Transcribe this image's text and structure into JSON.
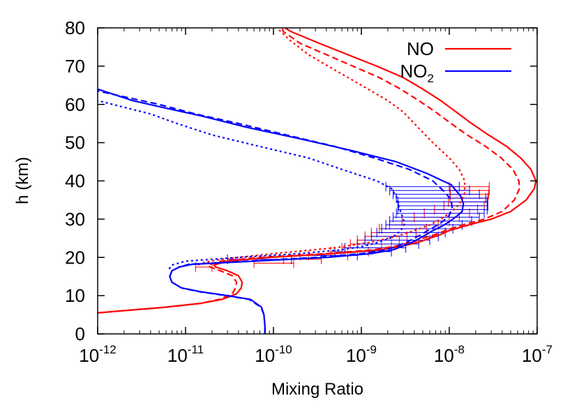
{
  "chart_data": {
    "type": "line",
    "xlabel": "Mixing Ratio",
    "ylabel": "h (km)",
    "xscale": "log",
    "xlim": [
      1e-12,
      1e-07
    ],
    "ylim": [
      0,
      80
    ],
    "x_ticks": [
      {
        "base": "10",
        "exp": "-12",
        "value": 1e-12
      },
      {
        "base": "10",
        "exp": "-11",
        "value": 1e-11
      },
      {
        "base": "10",
        "exp": "-10",
        "value": 1e-10
      },
      {
        "base": "10",
        "exp": "-9",
        "value": 1e-09
      },
      {
        "base": "10",
        "exp": "-8",
        "value": 1e-08
      },
      {
        "base": "10",
        "exp": "-7",
        "value": 1e-07
      }
    ],
    "y_ticks": [
      "0",
      "10",
      "20",
      "30",
      "40",
      "50",
      "60",
      "70",
      "80"
    ],
    "legend": {
      "position": "top-right",
      "entries": [
        {
          "label": "NO",
          "sub": "",
          "color": "#ff0000"
        },
        {
          "label": "NO",
          "sub": "2",
          "color": "#0000ff"
        }
      ]
    },
    "series": [
      {
        "name": "NO",
        "style": "solid",
        "color": "#ff0000",
        "points": [
          [
            1e-12,
            5.5
          ],
          [
            6e-12,
            7
          ],
          [
            1.5e-11,
            8
          ],
          [
            2.6e-11,
            9
          ],
          [
            3.8e-11,
            10.5
          ],
          [
            4.3e-11,
            12
          ],
          [
            4.4e-11,
            13.5
          ],
          [
            4e-11,
            15.2
          ],
          [
            3e-11,
            16.5
          ],
          [
            2.2e-11,
            17.5
          ],
          [
            2.1e-11,
            18
          ],
          [
            3e-11,
            19
          ],
          [
            9e-11,
            20
          ],
          [
            5e-10,
            21
          ],
          [
            1.7e-09,
            22
          ],
          [
            3e-09,
            23
          ],
          [
            4.5e-09,
            24
          ],
          [
            6e-09,
            25
          ],
          [
            8e-09,
            26
          ],
          [
            1e-08,
            27
          ],
          [
            1.4e-08,
            28
          ],
          [
            2e-08,
            29
          ],
          [
            3e-08,
            30
          ],
          [
            5e-08,
            32
          ],
          [
            7.5e-08,
            35
          ],
          [
            9.3e-08,
            38
          ],
          [
            9.7e-08,
            40
          ],
          [
            8.5e-08,
            43
          ],
          [
            6.5e-08,
            46
          ],
          [
            4.5e-08,
            49
          ],
          [
            2.8e-08,
            52
          ],
          [
            1.8e-08,
            55
          ],
          [
            1.2e-08,
            58
          ],
          [
            8e-09,
            61
          ],
          [
            5e-09,
            64
          ],
          [
            3e-09,
            67
          ],
          [
            1.5e-09,
            70
          ],
          [
            7e-10,
            73
          ],
          [
            3.3e-10,
            76
          ],
          [
            1.6e-10,
            79
          ],
          [
            1.35e-10,
            80
          ]
        ]
      },
      {
        "name": "NO dashed",
        "style": "dashed",
        "color": "#ff0000",
        "points": [
          [
            1e-12,
            5.5
          ],
          [
            6e-12,
            7
          ],
          [
            1.5e-11,
            8
          ],
          [
            2.4e-11,
            9
          ],
          [
            3.4e-11,
            10.5
          ],
          [
            3.7e-11,
            12
          ],
          [
            3.8e-11,
            13.5
          ],
          [
            3.4e-11,
            15.2
          ],
          [
            2.5e-11,
            16.5
          ],
          [
            1.9e-11,
            17.5
          ],
          [
            1.8e-11,
            18
          ],
          [
            2.5e-11,
            19
          ],
          [
            7e-11,
            20
          ],
          [
            4e-10,
            21
          ],
          [
            1.4e-09,
            22
          ],
          [
            2.5e-09,
            23
          ],
          [
            3.8e-09,
            24
          ],
          [
            5e-09,
            25
          ],
          [
            7e-09,
            26
          ],
          [
            9e-09,
            27
          ],
          [
            1.2e-08,
            28
          ],
          [
            1.7e-08,
            29
          ],
          [
            2.5e-08,
            30
          ],
          [
            4e-08,
            32
          ],
          [
            5.5e-08,
            35
          ],
          [
            6.3e-08,
            38
          ],
          [
            6.2e-08,
            40
          ],
          [
            5.3e-08,
            43
          ],
          [
            3.9e-08,
            46
          ],
          [
            2.6e-08,
            49
          ],
          [
            1.6e-08,
            52
          ],
          [
            1.05e-08,
            55
          ],
          [
            7e-09,
            58
          ],
          [
            4.5e-09,
            61
          ],
          [
            2.8e-09,
            64
          ],
          [
            1.6e-09,
            67
          ],
          [
            8e-10,
            70
          ],
          [
            4e-10,
            73
          ],
          [
            2e-10,
            76
          ],
          [
            1.3e-10,
            79
          ],
          [
            1.25e-10,
            80
          ]
        ]
      },
      {
        "name": "NO dotted",
        "style": "dotted",
        "color": "#ff0000",
        "points": [
          [
            1.4e-11,
            18
          ],
          [
            1.5e-11,
            18.5
          ],
          [
            2.5e-11,
            19.5
          ],
          [
            1e-10,
            21
          ],
          [
            5e-10,
            22.5
          ],
          [
            1.3e-09,
            24
          ],
          [
            2.5e-09,
            25.5
          ],
          [
            4e-09,
            27
          ],
          [
            6e-09,
            28.5
          ],
          [
            8e-09,
            30
          ],
          [
            1e-08,
            31.5
          ],
          [
            1.2e-08,
            33
          ],
          [
            1.4e-08,
            35
          ],
          [
            1.5e-08,
            37
          ],
          [
            1.5e-08,
            40
          ],
          [
            1.3e-08,
            43
          ],
          [
            1e-08,
            46
          ],
          [
            6.5e-09,
            50
          ],
          [
            4e-09,
            55
          ],
          [
            3e-09,
            58
          ],
          [
            2e-09,
            61
          ],
          [
            1e-09,
            65
          ],
          [
            5e-10,
            69
          ],
          [
            2.5e-10,
            73
          ],
          [
            1.5e-10,
            77
          ],
          [
            1.1e-10,
            80
          ]
        ]
      },
      {
        "name": "NO2",
        "style": "solid",
        "color": "#0000ff",
        "points": [
          [
            8e-11,
            0
          ],
          [
            8e-11,
            2
          ],
          [
            7.8e-11,
            5
          ],
          [
            7.3e-11,
            7
          ],
          [
            5.5e-11,
            9
          ],
          [
            3e-11,
            10
          ],
          [
            1.5e-11,
            11
          ],
          [
            9e-12,
            12
          ],
          [
            7e-12,
            13.5
          ],
          [
            6.6e-12,
            15
          ],
          [
            7e-12,
            16.5
          ],
          [
            8.5e-12,
            17.5
          ],
          [
            1.2e-11,
            18.2
          ],
          [
            6e-11,
            19
          ],
          [
            4e-10,
            20
          ],
          [
            1.3e-09,
            21
          ],
          [
            2.3e-09,
            22
          ],
          [
            3e-09,
            23
          ],
          [
            3.8e-09,
            24
          ],
          [
            4.6e-09,
            25
          ],
          [
            5.5e-09,
            26
          ],
          [
            6.5e-09,
            27
          ],
          [
            8e-09,
            28
          ],
          [
            9.5e-09,
            29
          ],
          [
            1.1e-08,
            30
          ],
          [
            1.25e-08,
            31
          ],
          [
            1.4e-08,
            32
          ],
          [
            1.45e-08,
            34
          ],
          [
            1.35e-08,
            36
          ],
          [
            1.05e-08,
            39
          ],
          [
            5.5e-09,
            42
          ],
          [
            2.5e-09,
            45
          ],
          [
            7.5e-10,
            48
          ],
          [
            2e-10,
            51
          ],
          [
            5e-11,
            54
          ],
          [
            1.5e-11,
            57
          ],
          [
            6e-12,
            59
          ],
          [
            2.5e-12,
            61
          ],
          [
            1e-12,
            64
          ]
        ]
      },
      {
        "name": "NO2 dashed",
        "style": "dashed",
        "color": "#0000ff",
        "points": [
          [
            8e-11,
            0
          ],
          [
            8e-11,
            2
          ],
          [
            7.8e-11,
            5
          ],
          [
            7.2e-11,
            7
          ],
          [
            5.3e-11,
            9
          ],
          [
            2.9e-11,
            10
          ],
          [
            1.45e-11,
            11
          ],
          [
            9e-12,
            12
          ],
          [
            7e-12,
            13.5
          ],
          [
            6.6e-12,
            15
          ],
          [
            7e-12,
            16.5
          ],
          [
            8.5e-12,
            17.5
          ],
          [
            1.1e-11,
            18.2
          ],
          [
            5e-11,
            19
          ],
          [
            3e-10,
            20
          ],
          [
            1e-09,
            21
          ],
          [
            1.9e-09,
            22
          ],
          [
            2.6e-09,
            23
          ],
          [
            3.3e-09,
            24
          ],
          [
            4e-09,
            25
          ],
          [
            4.8e-09,
            26
          ],
          [
            5.7e-09,
            27
          ],
          [
            6.8e-09,
            28
          ],
          [
            8e-09,
            29
          ],
          [
            9e-09,
            30
          ],
          [
            1e-08,
            31
          ],
          [
            1.08e-08,
            33
          ],
          [
            1.05e-08,
            35
          ],
          [
            9e-09,
            37
          ],
          [
            6.5e-09,
            40
          ],
          [
            3.5e-09,
            43
          ],
          [
            1.4e-09,
            46
          ],
          [
            5e-10,
            49
          ],
          [
            1.4e-10,
            52
          ],
          [
            4e-11,
            55
          ],
          [
            1.3e-11,
            57.5
          ],
          [
            5e-12,
            60
          ],
          [
            1e-12,
            63.5
          ]
        ]
      },
      {
        "name": "NO2 dotted",
        "style": "dotted",
        "color": "#0000ff",
        "points": [
          [
            6.5e-12,
            17
          ],
          [
            7e-12,
            18
          ],
          [
            1e-11,
            19
          ],
          [
            4e-11,
            20
          ],
          [
            2e-10,
            21
          ],
          [
            6e-10,
            22
          ],
          [
            1.1e-09,
            23
          ],
          [
            1.6e-09,
            24
          ],
          [
            2.1e-09,
            25
          ],
          [
            2.5e-09,
            26
          ],
          [
            2.8e-09,
            27
          ],
          [
            3e-09,
            28
          ],
          [
            3.1e-09,
            29
          ],
          [
            3e-09,
            30
          ],
          [
            2.8e-09,
            32
          ],
          [
            2.6e-09,
            34
          ],
          [
            2.5e-09,
            36
          ],
          [
            2.2e-09,
            38
          ],
          [
            1.5e-09,
            40
          ],
          [
            6e-10,
            43
          ],
          [
            2.5e-10,
            46
          ],
          [
            7e-11,
            49
          ],
          [
            2e-11,
            52
          ],
          [
            8e-12,
            55
          ],
          [
            4e-12,
            57.5
          ],
          [
            1e-12,
            61
          ]
        ]
      }
    ],
    "error_bars": [
      {
        "color": "#ff0000",
        "points": [
          [
            1.3e-11,
            17.5,
            2e-11
          ],
          [
            6e-11,
            18.5,
            1.7e-10
          ],
          [
            1.3e-10,
            19.5,
            3.5e-10
          ],
          [
            2.5e-10,
            20.5,
            7e-10
          ],
          [
            4.5e-10,
            21.5,
            1.2e-09
          ],
          [
            6e-10,
            22.5,
            1.7e-09
          ],
          [
            7.5e-10,
            23.5,
            2.2e-09
          ],
          [
            9e-10,
            24.5,
            2.7e-09
          ],
          [
            1.1e-09,
            25.5,
            3.3e-09
          ],
          [
            1.3e-09,
            26.5,
            4.2e-09
          ],
          [
            1.6e-09,
            27.5,
            5.5e-09
          ],
          [
            2.1e-09,
            28.5,
            7.5e-09
          ],
          [
            2.9e-09,
            29.5,
            1e-08
          ],
          [
            4e-09,
            30.5,
            1.3e-08
          ],
          [
            5.2e-09,
            31.5,
            1.7e-08
          ],
          [
            6.8e-09,
            32.5,
            2.1e-08
          ],
          [
            8.7e-09,
            33.5,
            2.5e-08
          ],
          [
            9.8e-09,
            34.5,
            2.7e-08
          ],
          [
            1.02e-08,
            35.5,
            2.75e-08
          ],
          [
            1.03e-08,
            36.5,
            2.8e-08
          ],
          [
            1.02e-08,
            37.5,
            2.85e-08
          ],
          [
            1e-08,
            38.5,
            2.85e-08
          ]
        ]
      },
      {
        "color": "#0000ff",
        "points": [
          [
            3e-11,
            19.5,
            1.6e-10
          ],
          [
            2e-10,
            20.5,
            9e-10
          ],
          [
            5e-10,
            21.5,
            2.2e-09
          ],
          [
            6.5e-10,
            22.5,
            3.2e-09
          ],
          [
            9e-10,
            23.5,
            4.5e-09
          ],
          [
            1.1e-09,
            24.5,
            6e-09
          ],
          [
            1.3e-09,
            25.5,
            7.5e-09
          ],
          [
            1.5e-09,
            26.5,
            9e-09
          ],
          [
            1.7e-09,
            27.5,
            1.1e-08
          ],
          [
            1.9e-09,
            28.5,
            1.4e-08
          ],
          [
            2.1e-09,
            29.5,
            1.8e-08
          ],
          [
            2.3e-09,
            30.5,
            2.2e-08
          ],
          [
            2.5e-09,
            31.5,
            2.5e-08
          ],
          [
            2.6e-09,
            32.5,
            2.7e-08
          ],
          [
            2.65e-09,
            33.5,
            2.75e-08
          ],
          [
            2.6e-09,
            34.5,
            2.7e-08
          ],
          [
            2.5e-09,
            35.5,
            2.6e-08
          ],
          [
            2.3e-09,
            36.5,
            2.2e-08
          ],
          [
            2.1e-09,
            37.5,
            1.7e-08
          ],
          [
            1.9e-09,
            38.5,
            1.3e-08
          ]
        ]
      }
    ]
  }
}
